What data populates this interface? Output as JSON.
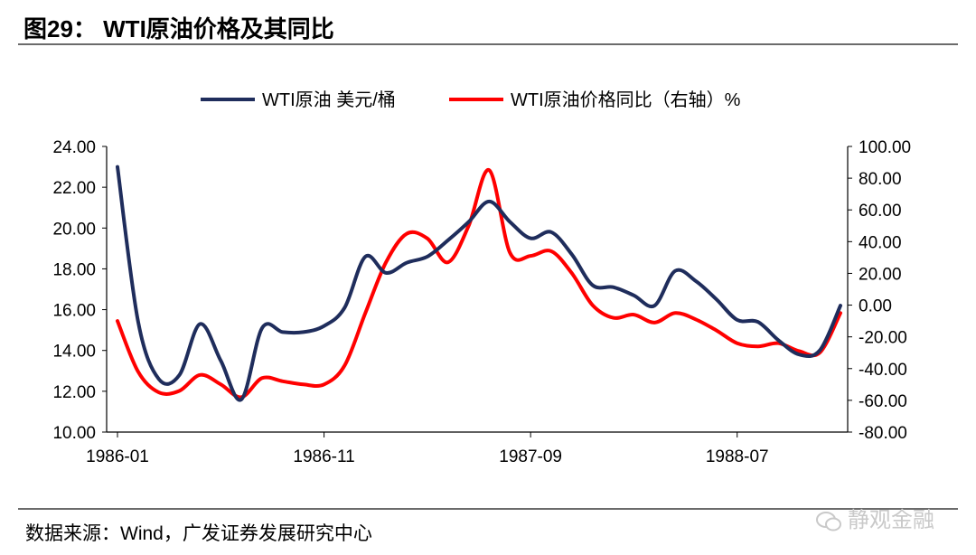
{
  "header": {
    "title": "图29： WTI原油价格及其同比"
  },
  "footer": {
    "source": "数据来源：Wind，广发证券发展研究中心",
    "watermark": "静观金融"
  },
  "chart_data": {
    "type": "line",
    "x_ticks": [
      "1986-01",
      "1986-11",
      "1987-09",
      "1988-07"
    ],
    "left_axis": {
      "min": 10,
      "max": 24,
      "step": 2,
      "tick_labels": [
        "10.00",
        "12.00",
        "14.00",
        "16.00",
        "18.00",
        "20.00",
        "22.00",
        "24.00"
      ]
    },
    "right_axis": {
      "min": -80,
      "max": 100,
      "step": 20,
      "tick_labels": [
        "-80.00",
        "-60.00",
        "-40.00",
        "-20.00",
        "0.00",
        "20.00",
        "40.00",
        "60.00",
        "80.00",
        "100.00"
      ]
    },
    "colors": {
      "price": "#1f2d5c",
      "yoy": "#ff0000"
    },
    "x": [
      "1986-01",
      "1986-02",
      "1986-03",
      "1986-04",
      "1986-05",
      "1986-06",
      "1986-07",
      "1986-08",
      "1986-09",
      "1986-10",
      "1986-11",
      "1986-12",
      "1987-01",
      "1987-02",
      "1987-03",
      "1987-04",
      "1987-05",
      "1987-06",
      "1987-07",
      "1987-08",
      "1987-09",
      "1987-10",
      "1987-11",
      "1987-12",
      "1988-01",
      "1988-02",
      "1988-03",
      "1988-04",
      "1988-05",
      "1988-06",
      "1988-07",
      "1988-08",
      "1988-09",
      "1988-10",
      "1988-11",
      "1988-12"
    ],
    "series": [
      {
        "name": "WTI原油 美元/桶",
        "axis": "left",
        "values": [
          23.0,
          15.4,
          12.6,
          12.8,
          15.3,
          13.5,
          11.6,
          15.1,
          14.9,
          14.9,
          15.2,
          16.1,
          18.6,
          17.8,
          18.3,
          18.6,
          19.4,
          20.3,
          21.3,
          20.3,
          19.5,
          19.8,
          18.7,
          17.2,
          17.1,
          16.7,
          16.2,
          17.9,
          17.4,
          16.5,
          15.5,
          15.4,
          14.5,
          13.8,
          14.0,
          16.2
        ]
      },
      {
        "name": "WTI原油价格同比（右轴）%",
        "axis": "right",
        "values": [
          -10.0,
          -42.0,
          -55.0,
          -54.0,
          -44.0,
          -50.0,
          -58.0,
          -46.0,
          -48.0,
          -50.0,
          -50.0,
          -38.0,
          -5.0,
          27.0,
          45.0,
          42.0,
          27.0,
          50.0,
          85.0,
          33.0,
          31.0,
          34.0,
          20.0,
          0.0,
          -8.0,
          -6.0,
          -11.0,
          -5.0,
          -9.0,
          -16.0,
          -24.0,
          -26.0,
          -24.0,
          -29.0,
          -30.0,
          -5.0
        ]
      }
    ]
  }
}
